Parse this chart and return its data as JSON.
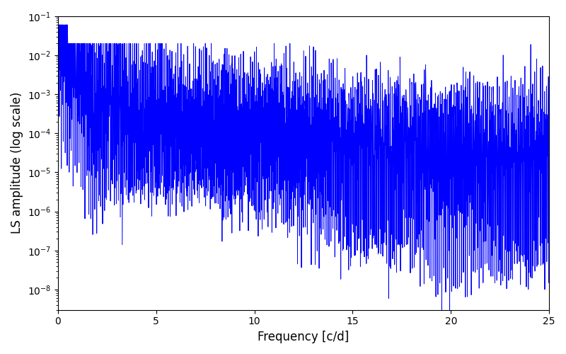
{
  "title": "",
  "xlabel": "Frequency [c/d]",
  "ylabel": "LS amplitude (log scale)",
  "line_color": "#0000ff",
  "line_width": 0.7,
  "xlim": [
    0,
    25
  ],
  "ylim": [
    3e-09,
    0.1
  ],
  "figsize": [
    8.0,
    5.0
  ],
  "dpi": 100,
  "freq_max": 25.0,
  "background_color": "#ffffff",
  "seed": 42
}
